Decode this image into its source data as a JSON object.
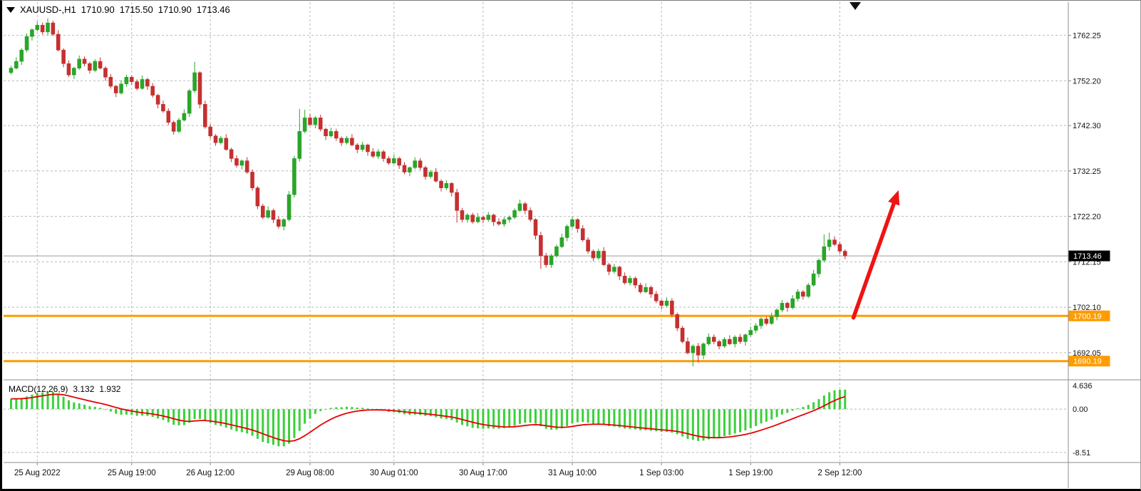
{
  "header": {
    "symbol_period": "XAUUSD-,H1",
    "open": "1710.90",
    "high": "1715.50",
    "low": "1710.90",
    "close": "1713.46"
  },
  "macd_label": {
    "title": "MACD(12,26,9)",
    "main_value": "3.132",
    "signal_value": "1.932"
  },
  "colors": {
    "bull": "#2aa52a",
    "bear": "#c53030",
    "grid": "#b9b9b9",
    "hline": "#ff9c00",
    "macd_hist": "#3bd03b",
    "macd_signal": "#e60000",
    "arrow": "#ee1414",
    "price_line": "#9c9c9c",
    "badge_current_bg": "#000000",
    "badge_text": "#ffffff",
    "axis_text": "#111111",
    "frame": "#8c8c8c"
  },
  "chart_data": {
    "type": "candlestick",
    "symbol": "XAUUSD-",
    "timeframe": "H1",
    "price_range": [
      1686.2,
      1769.6
    ],
    "price_ticks": [
      "1762.25",
      "1752.20",
      "1742.30",
      "1732.25",
      "1722.20",
      "1712.15",
      "1702.10",
      "1692.05"
    ],
    "time_ticks": [
      {
        "label": "25 Aug 2022",
        "index": 5
      },
      {
        "label": "25 Aug 19:00",
        "index": 23
      },
      {
        "label": "26 Aug 12:00",
        "index": 38
      },
      {
        "label": "29 Aug 08:00",
        "index": 57
      },
      {
        "label": "30 Aug 01:00",
        "index": 73
      },
      {
        "label": "30 Aug 17:00",
        "index": 90
      },
      {
        "label": "31 Aug 10:00",
        "index": 107
      },
      {
        "label": "1 Sep 03:00",
        "index": 124
      },
      {
        "label": "1 Sep 19:00",
        "index": 141
      },
      {
        "label": "2 Sep 12:00",
        "index": 158
      }
    ],
    "first_open": 1754.0,
    "closes": [
      1755.0,
      1756.5,
      1759.0,
      1762.0,
      1763.5,
      1764.5,
      1763.0,
      1765.0,
      1762.5,
      1759.0,
      1756.0,
      1753.5,
      1755.0,
      1757.0,
      1756.0,
      1754.5,
      1756.5,
      1755.0,
      1753.0,
      1751.0,
      1749.5,
      1751.5,
      1753.0,
      1752.0,
      1750.5,
      1752.5,
      1751.0,
      1749.0,
      1747.0,
      1745.5,
      1743.0,
      1741.0,
      1743.5,
      1745.0,
      1750.0,
      1754.0,
      1747.0,
      1742.0,
      1740.0,
      1738.5,
      1739.5,
      1737.0,
      1735.0,
      1733.5,
      1734.5,
      1732.0,
      1728.5,
      1724.5,
      1722.0,
      1723.5,
      1721.5,
      1720.0,
      1721.5,
      1727.0,
      1735.0,
      1741.0,
      1744.0,
      1742.5,
      1744.0,
      1741.5,
      1740.0,
      1741.0,
      1739.5,
      1738.5,
      1739.5,
      1738.0,
      1737.0,
      1738.0,
      1736.5,
      1735.5,
      1736.5,
      1735.0,
      1734.0,
      1735.0,
      1733.5,
      1732.0,
      1733.0,
      1734.5,
      1733.0,
      1731.0,
      1732.0,
      1730.0,
      1728.5,
      1729.5,
      1727.5,
      1723.5,
      1721.5,
      1722.5,
      1721.0,
      1722.0,
      1721.5,
      1722.5,
      1721.0,
      1720.5,
      1721.5,
      1722.0,
      1723.5,
      1725.0,
      1723.5,
      1721.5,
      1718.0,
      1713.5,
      1711.5,
      1713.5,
      1715.5,
      1717.5,
      1720.0,
      1721.5,
      1719.5,
      1717.0,
      1714.5,
      1713.0,
      1714.5,
      1711.5,
      1710.0,
      1711.0,
      1709.0,
      1707.5,
      1708.5,
      1707.0,
      1705.5,
      1706.5,
      1705.0,
      1703.5,
      1702.5,
      1703.5,
      1700.5,
      1697.5,
      1694.5,
      1692.0,
      1693.5,
      1691.5,
      1694.0,
      1695.5,
      1694.5,
      1693.5,
      1695.0,
      1694.0,
      1695.5,
      1694.5,
      1696.0,
      1697.0,
      1698.0,
      1699.5,
      1698.5,
      1700.0,
      1701.5,
      1703.0,
      1702.0,
      1704.0,
      1705.5,
      1704.5,
      1707.0,
      1709.5,
      1712.5,
      1715.5,
      1717.0,
      1716.0,
      1714.5,
      1713.46
    ],
    "wick_high_pattern": [
      0.5,
      0.9,
      0.4,
      0.7,
      0.3,
      0.8,
      0.6,
      0.4
    ],
    "wick_low_pattern": [
      0.4,
      0.3,
      0.8,
      0.5,
      0.9,
      0.4,
      0.6,
      0.7
    ],
    "wick_overrides": {
      "7": {
        "h": 1766.0
      },
      "35": {
        "h": 1756.4
      },
      "55": {
        "h": 1746.0
      },
      "56": {
        "h": 1745.8
      },
      "85": {
        "l": 1720.8
      },
      "101": {
        "l": 1710.6
      },
      "130": {
        "l": 1689.0
      },
      "131": {
        "l": 1689.9
      },
      "155": {
        "h": 1718.2
      },
      "156": {
        "h": 1718.6
      }
    },
    "current_price": 1713.46,
    "current_price_label": "1713.46",
    "hlines": [
      {
        "price": 1700.19,
        "label": "1700.19"
      },
      {
        "price": 1690.19,
        "label": "1690.19"
      }
    ],
    "macd": {
      "fast": 12,
      "slow": 26,
      "signal": 9,
      "main_value": 3.132,
      "signal_value": 1.932,
      "seed_offset": 2.2,
      "range": [
        -10.2,
        5.2
      ],
      "axis_labels": [
        {
          "text": "4.636",
          "value": 4.636,
          "line": false
        },
        {
          "text": "0.00",
          "value": 0,
          "line": true
        },
        {
          "text": "-8.51",
          "value": -8.51,
          "line": true
        }
      ]
    },
    "arrow": {
      "x1_index": 160.6,
      "y1_price": 1699.8,
      "x2_index": 169.2,
      "y2_price": 1728.0
    }
  }
}
